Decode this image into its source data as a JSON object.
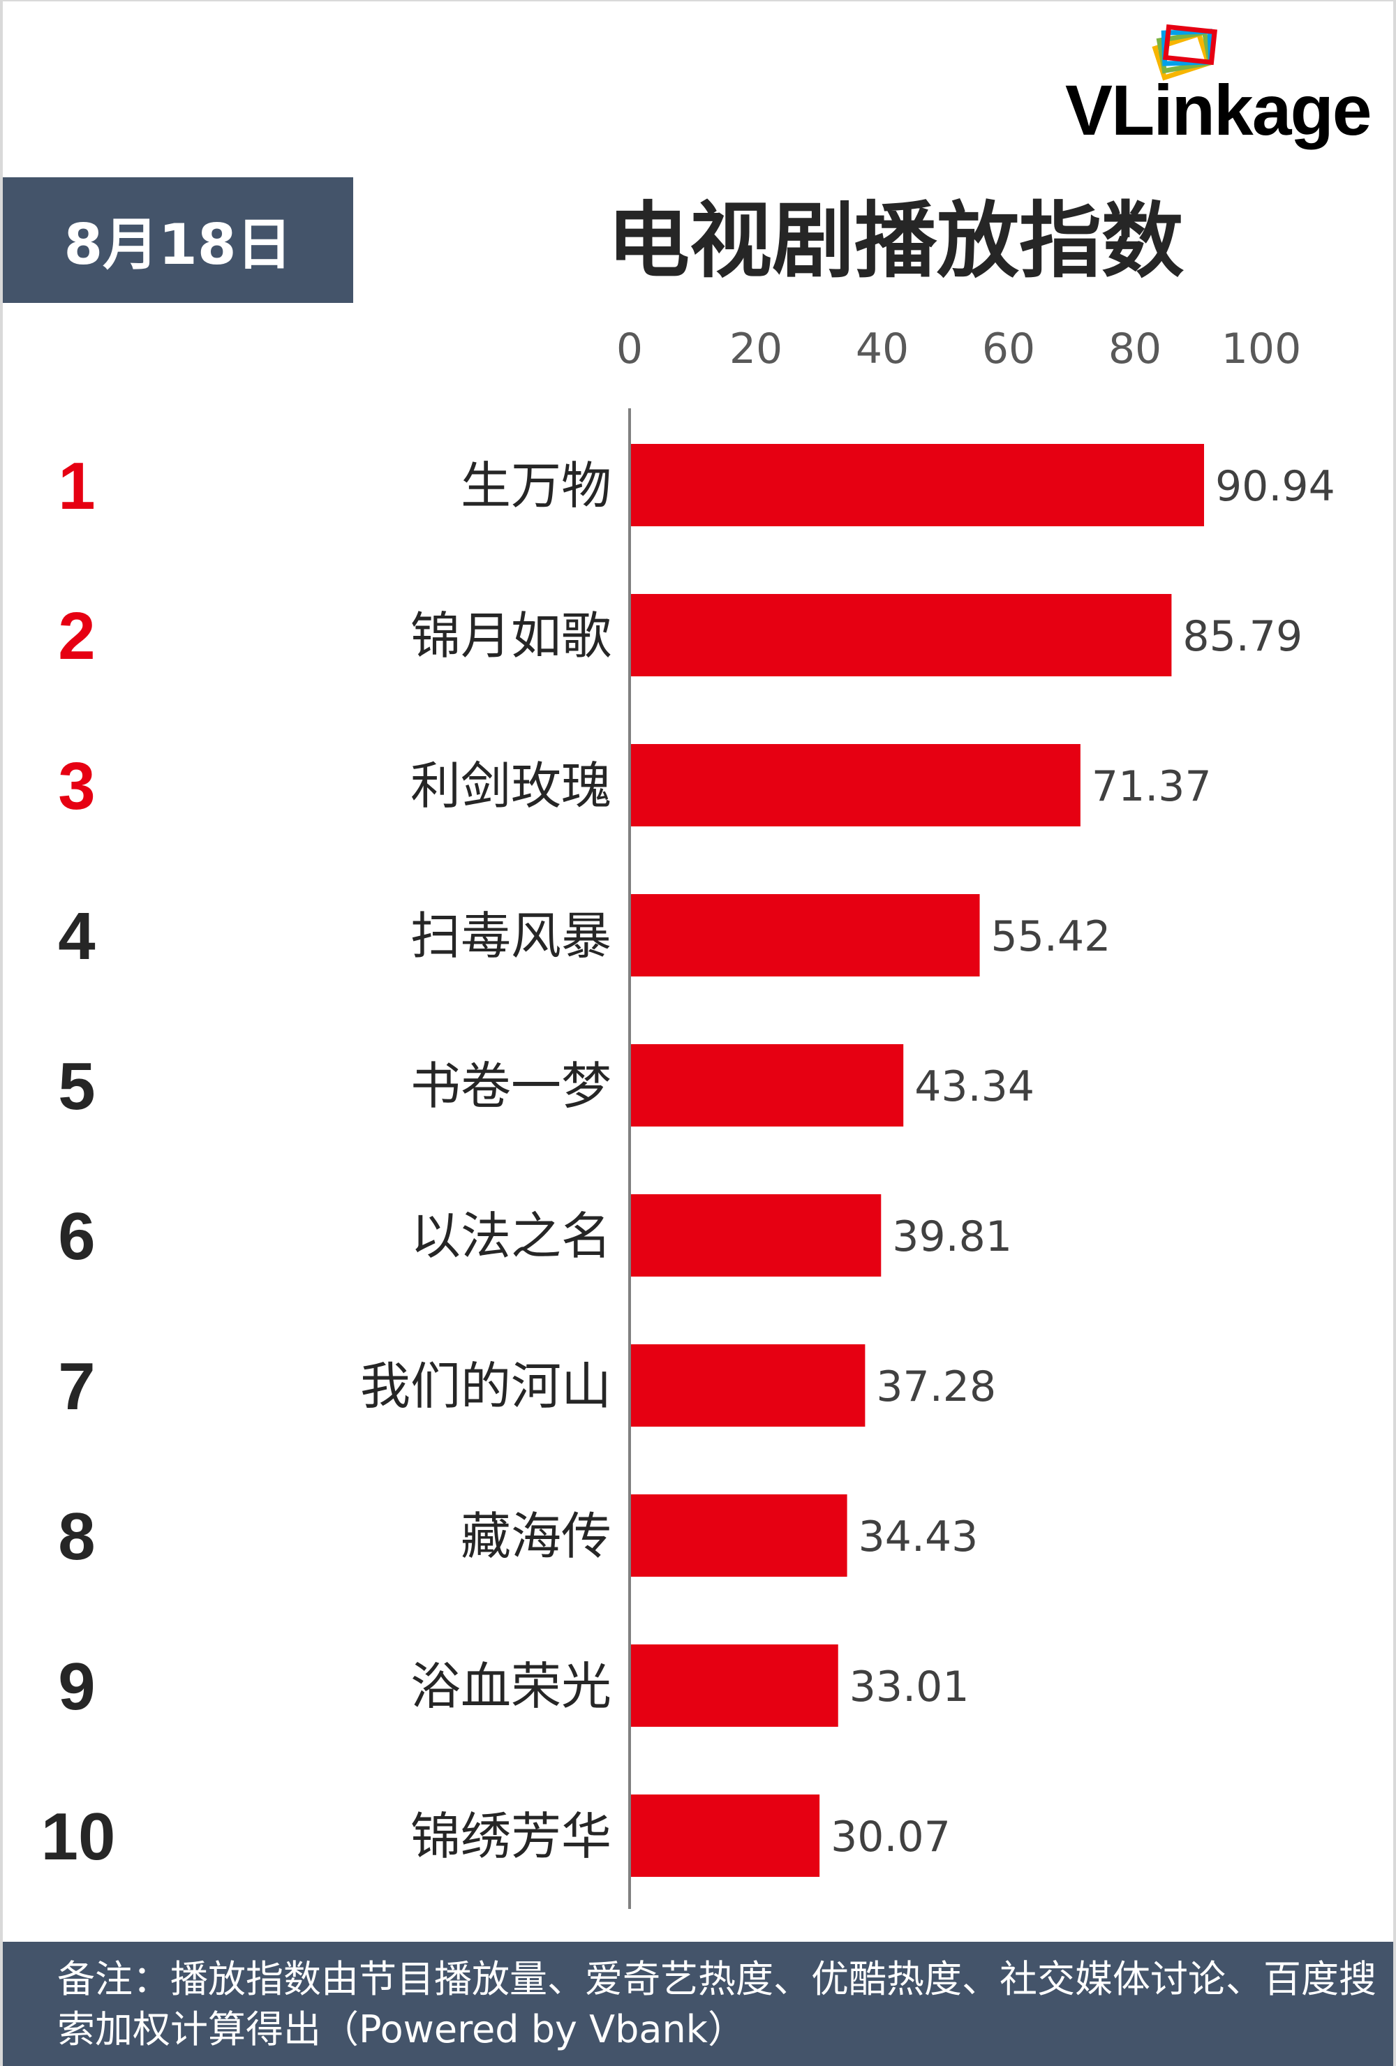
{
  "brand": {
    "logo_text": "VLinkage"
  },
  "header": {
    "date": "8月18日",
    "title": "电视剧播放指数"
  },
  "footer": {
    "note": "备注：播放指数由节目播放量、爱奇艺热度、优酷热度、社交媒体讨论、百度搜索加权计算得出（Powered by Vbank）"
  },
  "colors": {
    "bar": "#e60012",
    "rank_top": "#e60012",
    "rank_other": "#262626",
    "header_bg": "#44546a"
  },
  "chart_data": {
    "type": "bar",
    "orientation": "horizontal",
    "title": "电视剧播放指数",
    "xlim": [
      0,
      100
    ],
    "x_ticks": [
      "0",
      "20",
      "40",
      "60",
      "80",
      "100"
    ],
    "ranks": [
      "1",
      "2",
      "3",
      "4",
      "5",
      "6",
      "7",
      "8",
      "9",
      "10"
    ],
    "categories": [
      "生万物",
      "锦月如歌",
      "利剑玫瑰",
      "扫毒风暴",
      "书卷一梦",
      "以法之名",
      "我们的河山",
      "藏海传",
      "浴血荣光",
      "锦绣芳华"
    ],
    "values": [
      90.94,
      85.79,
      71.37,
      55.42,
      43.34,
      39.81,
      37.28,
      34.43,
      33.01,
      30.07
    ],
    "value_labels": [
      "90.94",
      "85.79",
      "71.37",
      "55.42",
      "43.34",
      "39.81",
      "37.28",
      "34.43",
      "33.01",
      "30.07"
    ]
  }
}
